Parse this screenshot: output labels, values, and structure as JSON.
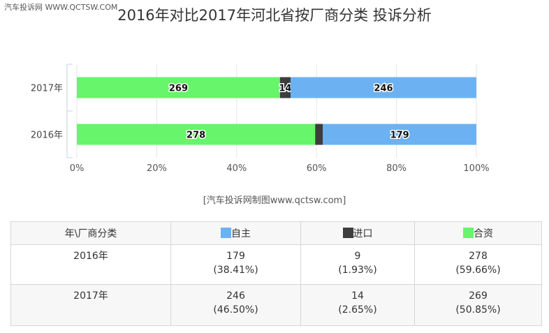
{
  "watermark": "汽车投诉网  WWW.QCTSW.COM",
  "source": "[汽车投诉网制图www.qctsw.com]",
  "chart_data": {
    "type": "bar",
    "orientation": "horizontal",
    "stacked": "percent",
    "title": "2016年对比2017年河北省按厂商分类 投诉分析",
    "categories": [
      "2017年",
      "2016年"
    ],
    "series": [
      {
        "name": "合资",
        "color": "#66f56b",
        "values": [
          269,
          278
        ]
      },
      {
        "name": "进口",
        "color": "#3d3d3d",
        "values": [
          14,
          9
        ]
      },
      {
        "name": "自主",
        "color": "#6cb2f2",
        "values": [
          246,
          179
        ]
      }
    ],
    "xlim": [
      0,
      100
    ],
    "xticks": [
      "0%",
      "20%",
      "40%",
      "60%",
      "80%",
      "100%"
    ],
    "grid": true
  },
  "table": {
    "header": [
      "年\\厂商分类",
      "自主",
      "进口",
      "合资"
    ],
    "header_colors": [
      "",
      "#6cb2f2",
      "#3d3d3d",
      "#66f56b"
    ],
    "rows": [
      {
        "label": "2016年",
        "cells": [
          {
            "v": "179",
            "p": "(38.41%)"
          },
          {
            "v": "9",
            "p": "(1.93%)"
          },
          {
            "v": "278",
            "p": "(59.66%)"
          }
        ]
      },
      {
        "label": "2017年",
        "cells": [
          {
            "v": "246",
            "p": "(46.50%)"
          },
          {
            "v": "14",
            "p": "(2.65%)"
          },
          {
            "v": "269",
            "p": "(50.85%)"
          }
        ]
      }
    ]
  }
}
